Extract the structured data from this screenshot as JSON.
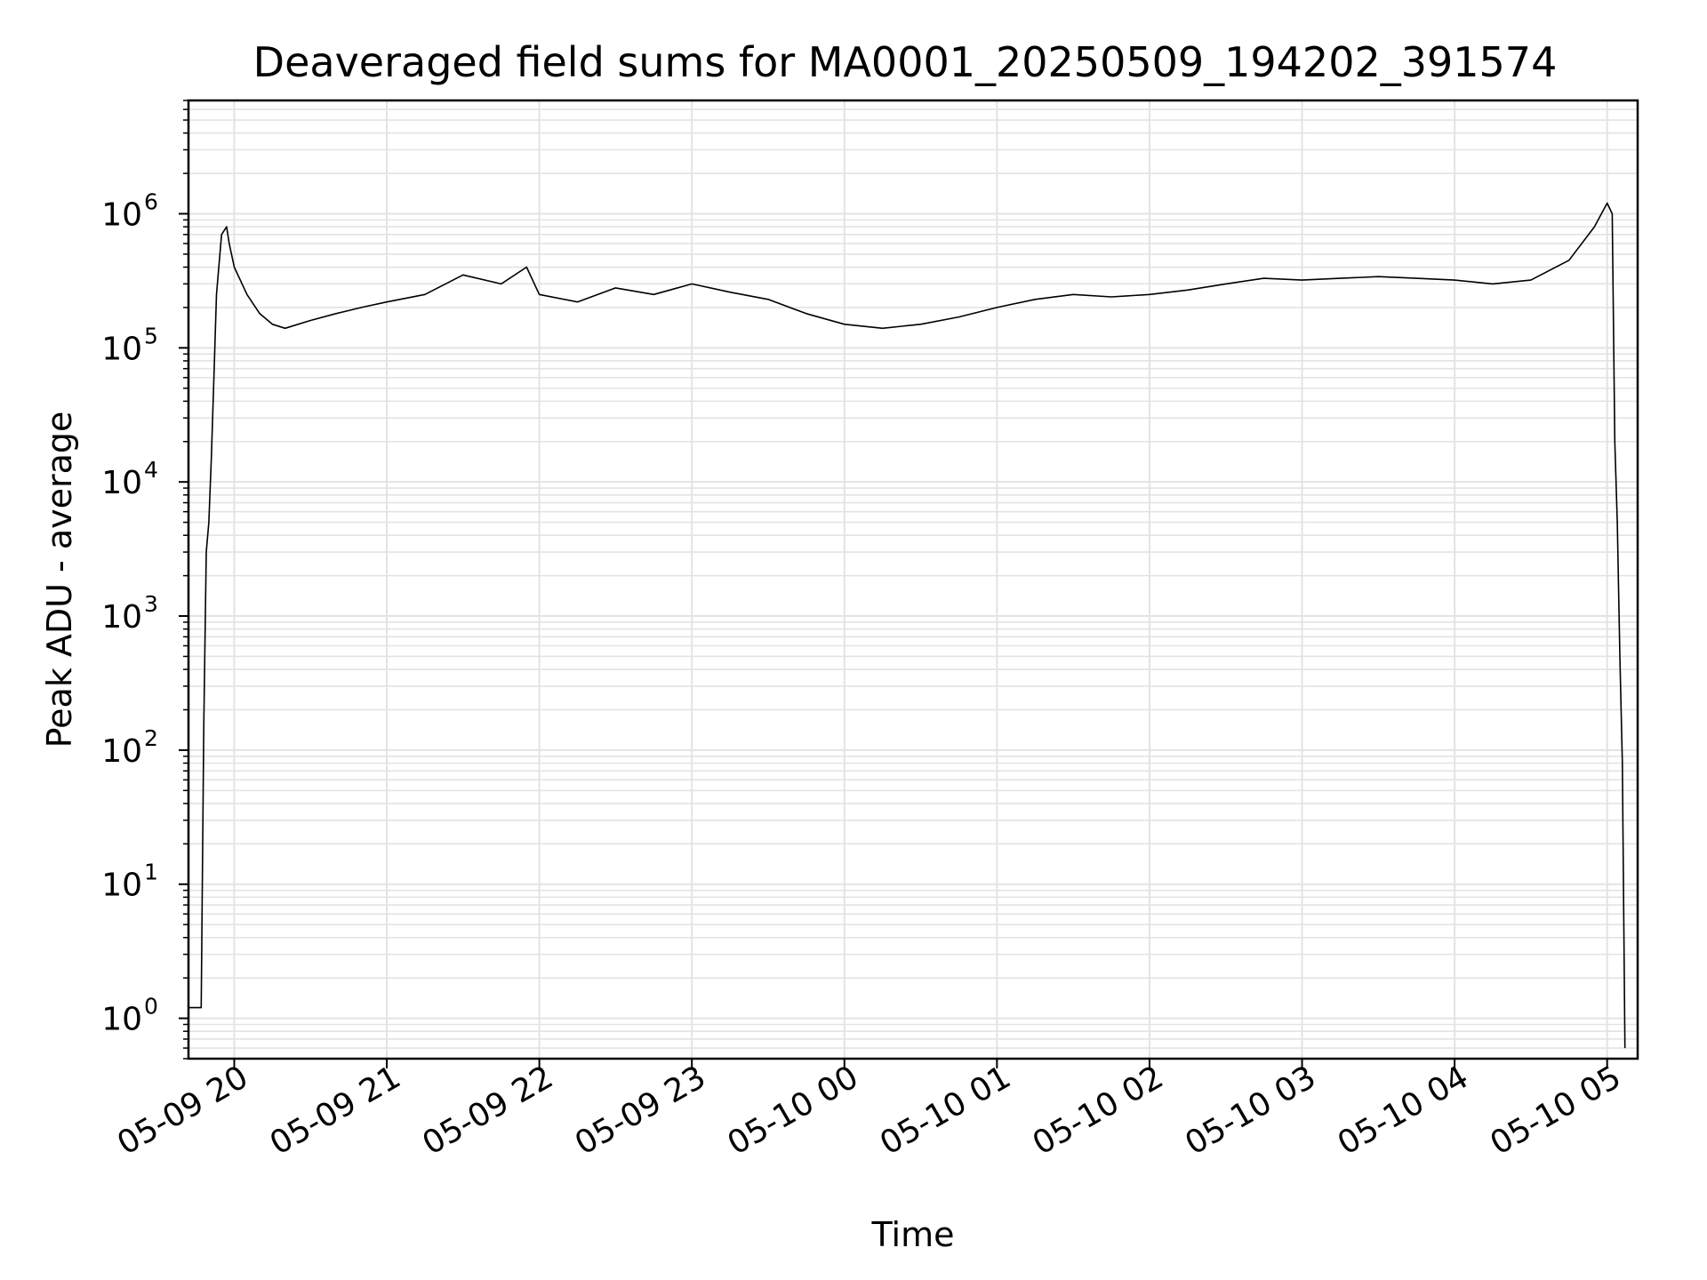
{
  "chart_data": {
    "type": "line",
    "title": "Deaveraged field sums for MA0001_20250509_194202_391574",
    "xlabel": "Time",
    "ylabel": "Peak ADU - average",
    "yscale": "log",
    "ylim": [
      0.5,
      7000000
    ],
    "xlim": [
      "05-09 19:42",
      "05-10 05:12"
    ],
    "grid": true,
    "line_color": "#000000",
    "grid_color": "#e3e3e3",
    "x_ticks": [
      "05-09 20",
      "05-09 21",
      "05-09 22",
      "05-09 23",
      "05-10 00",
      "05-10 01",
      "05-10 02",
      "05-10 03",
      "05-10 04",
      "05-10 05"
    ],
    "y_ticks": [
      {
        "value": 1,
        "base": "10",
        "exp": "0"
      },
      {
        "value": 10,
        "base": "10",
        "exp": "1"
      },
      {
        "value": 100,
        "base": "10",
        "exp": "2"
      },
      {
        "value": 1000,
        "base": "10",
        "exp": "3"
      },
      {
        "value": 10000,
        "base": "10",
        "exp": "4"
      },
      {
        "value": 100000,
        "base": "10",
        "exp": "5"
      },
      {
        "value": 1000000,
        "base": "10",
        "exp": "6"
      }
    ],
    "series": [
      {
        "x": [
          "05-09 19:42",
          "05-09 19:47",
          "05-09 19:48",
          "05-09 19:49",
          "05-09 19:50",
          "05-09 19:51",
          "05-09 19:52",
          "05-09 19:53",
          "05-09 19:55",
          "05-09 19:57",
          "05-09 19:58",
          "05-09 20:00",
          "05-09 20:05",
          "05-09 20:10",
          "05-09 20:15",
          "05-09 20:20",
          "05-09 20:30",
          "05-09 20:40",
          "05-09 20:50",
          "05-09 21:00",
          "05-09 21:15",
          "05-09 21:30",
          "05-09 21:45",
          "05-09 21:55",
          "05-09 22:00",
          "05-09 22:15",
          "05-09 22:30",
          "05-09 22:45",
          "05-09 23:00",
          "05-09 23:15",
          "05-09 23:30",
          "05-09 23:45",
          "05-10 00:00",
          "05-10 00:15",
          "05-10 00:30",
          "05-10 00:45",
          "05-10 01:00",
          "05-10 01:15",
          "05-10 01:30",
          "05-10 01:45",
          "05-10 02:00",
          "05-10 02:15",
          "05-10 02:30",
          "05-10 02:45",
          "05-10 03:00",
          "05-10 03:15",
          "05-10 03:30",
          "05-10 03:45",
          "05-10 04:00",
          "05-10 04:15",
          "05-10 04:30",
          "05-10 04:45",
          "05-10 04:55",
          "05-10 05:00",
          "05-10 05:02",
          "05-10 05:03",
          "05-10 05:04",
          "05-10 05:05",
          "05-10 05:06",
          "05-10 05:07"
        ],
        "y": [
          1.2,
          1.2,
          150,
          3000,
          5000,
          15000,
          60000,
          250000,
          700000,
          800000,
          600000,
          400000,
          250000,
          180000,
          150000,
          140000,
          160000,
          180000,
          200000,
          220000,
          250000,
          350000,
          300000,
          400000,
          250000,
          220000,
          280000,
          250000,
          300000,
          260000,
          230000,
          180000,
          150000,
          140000,
          150000,
          170000,
          200000,
          230000,
          250000,
          240000,
          250000,
          270000,
          300000,
          330000,
          320000,
          330000,
          340000,
          330000,
          320000,
          300000,
          320000,
          450000,
          800000,
          1200000,
          1000000,
          20000,
          5000,
          500,
          80,
          0.6
        ]
      }
    ]
  }
}
